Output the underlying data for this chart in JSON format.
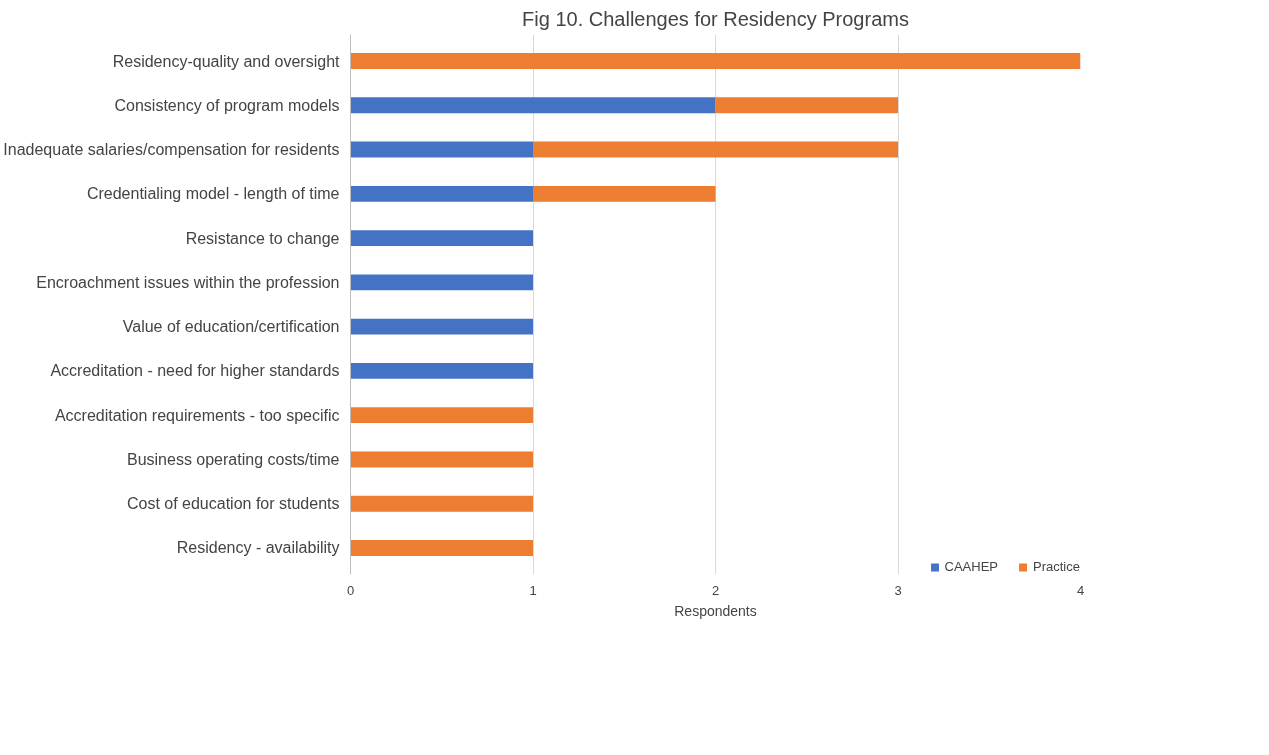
{
  "chart_data": {
    "type": "bar",
    "orientation": "horizontal",
    "stacked": true,
    "title": "Fig 10. Challenges for Residency Programs",
    "xlabel": "Respondents",
    "categories": [
      "Residency-quality and oversight",
      "Consistency of program models",
      "Inadequate salaries/compensation for residents",
      "Credentialing model - length of time",
      "Resistance to change",
      "Encroachment issues within the profession",
      "Value of education/certification",
      "Accreditation - need for higher standards",
      "Accreditation requirements - too specific",
      "Business operating costs/time",
      "Cost of education for students",
      "Residency - availability"
    ],
    "series": [
      {
        "name": "CAAHEP",
        "color": "#4472c4",
        "values": [
          null,
          2,
          1,
          1,
          1,
          1,
          1,
          1,
          null,
          null,
          null,
          null
        ]
      },
      {
        "name": "Practice",
        "color": "#ed7d31",
        "values": [
          4,
          1,
          2,
          1,
          null,
          null,
          null,
          null,
          1,
          1,
          1,
          1
        ]
      }
    ],
    "xlim": [
      0,
      4
    ],
    "xticks": [
      0,
      1,
      2,
      3,
      4
    ],
    "grid": "x",
    "legend": "bottom right"
  }
}
